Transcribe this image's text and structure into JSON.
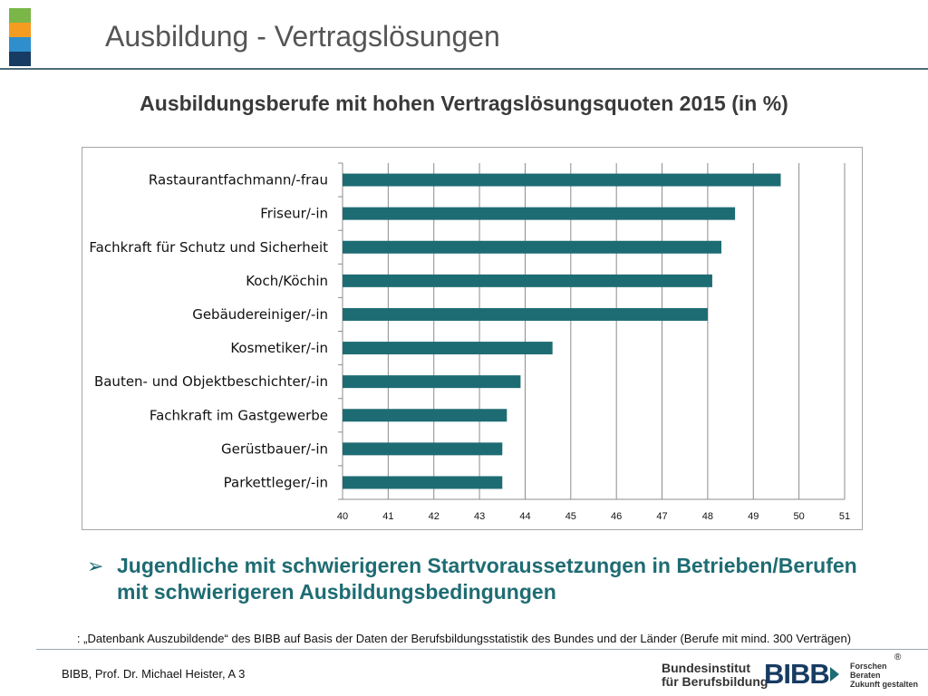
{
  "header": {
    "title": "Ausbildung - Vertragslösungen",
    "corner_colors": [
      "#7ab648",
      "#f39c1f",
      "#2e8fcc",
      "#173b62"
    ]
  },
  "chart_heading": "Ausbildungsberufe mit hohen Vertragslösungsquoten 2015 (in %)",
  "chart_data": {
    "type": "bar",
    "orientation": "horizontal",
    "title": "Ausbildungsberufe mit hohen Vertragslösungsquoten 2015 (in %)",
    "categories": [
      "Rastaurantfachmann/-frau",
      "Friseur/-in",
      "Fachkraft für Schutz und Sicherheit",
      "Koch/Köchin",
      "Gebäudereiniger/-in",
      "Kosmetiker/-in",
      "Bauten- und Objektbeschichter/-in",
      "Fachkraft im Gastgewerbe",
      "Gerüstbauer/-in",
      "Parkettleger/-in"
    ],
    "values": [
      49.6,
      48.6,
      48.3,
      48.1,
      48.0,
      44.6,
      43.9,
      43.6,
      43.5,
      43.5
    ],
    "xlim": [
      40,
      51
    ],
    "xticks": [
      40,
      41,
      42,
      43,
      44,
      45,
      46,
      47,
      48,
      49,
      50,
      51
    ],
    "xlabel": "",
    "ylabel": "",
    "grid": true,
    "legend": "none",
    "bar_color": "#1e6c73"
  },
  "bullet": {
    "text": "Jugendliche mit schwierigeren Startvoraussetzungen in Betrieben/Berufen mit schwierigeren Ausbildungsbedingungen"
  },
  "source_note": ": „Datenbank Auszubildende“ des BIBB auf Basis der Daten der Berufsbildungsstatistik des Bundes und der Länder (Berufe mit mind. 300 Verträgen)",
  "footer": {
    "left": "BIBB, Prof. Dr. Michael Heister, A 3",
    "logo": {
      "line1": "Bundesinstitut",
      "line2": "für Berufsbildung",
      "mark": "BIBB",
      "tag1": "Forschen",
      "tag2": "Beraten",
      "tag3": "Zukunft gestalten",
      "registered": "®"
    }
  }
}
